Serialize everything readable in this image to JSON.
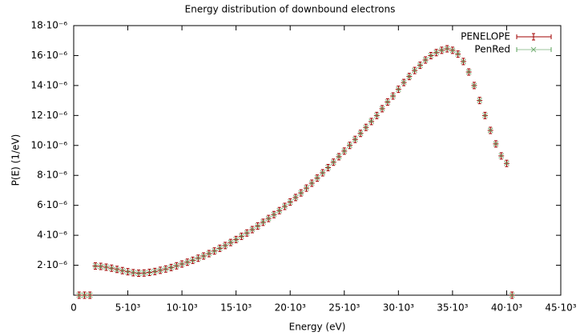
{
  "chart_data": {
    "type": "scatter",
    "title": "Energy distribution of downbound electrons",
    "x_label": "Energy   (eV)",
    "y_label": "P(E)   (1/eV)",
    "xlim": [
      0,
      45000
    ],
    "ylim": [
      0,
      1.8e-05
    ],
    "xticks": [
      0,
      {
        "value": 5000,
        "label": "5·10³"
      },
      {
        "value": 10000,
        "label": "10·10³"
      },
      {
        "value": 15000,
        "label": "15·10³"
      },
      {
        "value": 20000,
        "label": "20·10³"
      },
      {
        "value": 25000,
        "label": "25·10³"
      },
      {
        "value": 30000,
        "label": "30·10³"
      },
      {
        "value": 35000,
        "label": "35·10³"
      },
      {
        "value": 40000,
        "label": "40·10³"
      },
      {
        "value": 45000,
        "label": "45·10³"
      }
    ],
    "yticks": [
      {
        "value": 2e-06,
        "label": "2·10⁻⁶"
      },
      {
        "value": 4e-06,
        "label": "4·10⁻⁶"
      },
      {
        "value": 6e-06,
        "label": "6·10⁻⁶"
      },
      {
        "value": 8e-06,
        "label": "8·10⁻⁶"
      },
      {
        "value": 1e-05,
        "label": "10·10⁻⁶"
      },
      {
        "value": 1.2e-05,
        "label": "12·10⁻⁶"
      },
      {
        "value": 1.4e-05,
        "label": "14·10⁻⁶"
      },
      {
        "value": 1.6e-05,
        "label": "16·10⁻⁶"
      },
      {
        "value": 1.8e-05,
        "label": "18·10⁻⁶"
      }
    ],
    "legend": "top-right",
    "x": [
      500,
      1000,
      1500,
      2000,
      2500,
      3000,
      3500,
      4000,
      4500,
      5000,
      5500,
      6000,
      6500,
      7000,
      7500,
      8000,
      8500,
      9000,
      9500,
      10000,
      10500,
      11000,
      11500,
      12000,
      12500,
      13000,
      13500,
      14000,
      14500,
      15000,
      15500,
      16000,
      16500,
      17000,
      17500,
      18000,
      18500,
      19000,
      19500,
      20000,
      20500,
      21000,
      21500,
      22000,
      22500,
      23000,
      23500,
      24000,
      24500,
      25000,
      25500,
      26000,
      26500,
      27000,
      27500,
      28000,
      28500,
      29000,
      29500,
      30000,
      30500,
      31000,
      31500,
      32000,
      32500,
      33000,
      33500,
      34000,
      34500,
      35000,
      35500,
      36000,
      36500,
      37000,
      37500,
      38000,
      38500,
      39000,
      39500,
      40000,
      40500
    ],
    "series": [
      {
        "name": "PENELOPE",
        "color": "#a00000",
        "marker": "plus",
        "values": [
          0,
          0,
          0,
          1.95e-06,
          1.92e-06,
          1.87e-06,
          1.8e-06,
          1.72e-06,
          1.64e-06,
          1.57e-06,
          1.5e-06,
          1.47e-06,
          1.48e-06,
          1.52e-06,
          1.58e-06,
          1.66e-06,
          1.75e-06,
          1.85e-06,
          1.96e-06,
          2.08e-06,
          2.2e-06,
          2.33e-06,
          2.47e-06,
          2.62e-06,
          2.78e-06,
          2.95e-06,
          3.13e-06,
          3.32e-06,
          3.52e-06,
          3.72e-06,
          3.93e-06,
          4.15e-06,
          4.38e-06,
          4.62e-06,
          4.87e-06,
          5.12e-06,
          5.38e-06,
          5.65e-06,
          5.93e-06,
          6.22e-06,
          6.52e-06,
          6.83e-06,
          7.15e-06,
          7.48e-06,
          7.82e-06,
          8.17e-06,
          8.52e-06,
          8.88e-06,
          9.25e-06,
          9.62e-06,
          1e-05,
          1.04e-05,
          1.08e-05,
          1.12e-05,
          1.16e-05,
          1.2e-05,
          1.245e-05,
          1.29e-05,
          1.33e-05,
          1.375e-05,
          1.42e-05,
          1.46e-05,
          1.5e-05,
          1.535e-05,
          1.57e-05,
          1.6e-05,
          1.62e-05,
          1.635e-05,
          1.645e-05,
          1.635e-05,
          1.61e-05,
          1.56e-05,
          1.49e-05,
          1.4e-05,
          1.3e-05,
          1.2e-05,
          1.1e-05,
          1.01e-05,
          9.3e-06,
          8.8e-06,
          0
        ]
      },
      {
        "name": "PenRed",
        "color": "#5aa05a",
        "marker": "cross",
        "values": [
          0,
          0,
          0,
          1.96e-06,
          1.91e-06,
          1.88e-06,
          1.8e-06,
          1.71e-06,
          1.64e-06,
          1.56e-06,
          1.51e-06,
          1.47e-06,
          1.49e-06,
          1.52e-06,
          1.59e-06,
          1.66e-06,
          1.76e-06,
          1.85e-06,
          1.97e-06,
          2.08e-06,
          2.21e-06,
          2.33e-06,
          2.48e-06,
          2.62e-06,
          2.79e-06,
          2.95e-06,
          3.14e-06,
          3.32e-06,
          3.53e-06,
          3.72e-06,
          3.94e-06,
          4.15e-06,
          4.39e-06,
          4.62e-06,
          4.88e-06,
          5.12e-06,
          5.39e-06,
          5.65e-06,
          5.94e-06,
          6.22e-06,
          6.53e-06,
          6.83e-06,
          7.16e-06,
          7.48e-06,
          7.83e-06,
          8.17e-06,
          8.53e-06,
          8.88e-06,
          9.26e-06,
          9.62e-06,
          1.001e-05,
          1.04e-05,
          1.081e-05,
          1.12e-05,
          1.161e-05,
          1.2e-05,
          1.246e-05,
          1.29e-05,
          1.331e-05,
          1.375e-05,
          1.421e-05,
          1.46e-05,
          1.501e-05,
          1.535e-05,
          1.571e-05,
          1.6e-05,
          1.621e-05,
          1.635e-05,
          1.646e-05,
          1.635e-05,
          1.611e-05,
          1.56e-05,
          1.491e-05,
          1.4e-05,
          1.301e-05,
          1.2e-05,
          1.101e-05,
          1.01e-05,
          9.31e-06,
          8.81e-06,
          0
        ]
      }
    ]
  }
}
